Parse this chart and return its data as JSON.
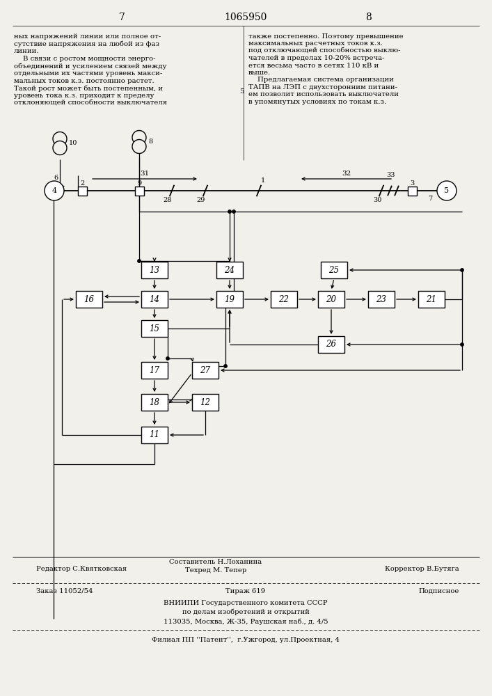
{
  "page_num": "1065950",
  "page_l": "7",
  "page_r": "8",
  "text_left": "ных напряжений линии или полное от-\nсутствие напряжения на любой из фаз\nлинии.\n    В связи с ростом мощности энерго-\nобъединений и усилением связей между\nотдельными их частями уровень макси-\nмальных токов к.з. постоянно растет.\nТакой рост может быть постепенным, и\nуровень тока к.з. приходит к пределу\nотклоняющей способности выключателя",
  "text_right": "также постепенно. Поэтому превышение\nмаксимальных расчетных токов к.з.\nпод отключающей способностью выклю-\nчателей в пределах 10-20% встреча-\nется весьма часто в сетях 110 кВ и\nвыше.\n    Предлагаемая система организации\nТАПВ на ЛЭП с двухсторонним питани-\nем позволит использовать выключатели\nв упомянутых условиях по токам к.з.",
  "line5": "5",
  "editor": "Редактор С.Квятковская",
  "author1": "Составитель Н.Лоханина",
  "author2": "Техред М. Тепер",
  "corrector": "Корректор В.Бутяга",
  "order": "Заказ 11052/54",
  "circulation": "Тираж 619",
  "subscription": "Подписное",
  "inst1": "ВНИИПИ Государственного комитета СССР",
  "inst2": "по делам изобретений и открытий",
  "inst3": "113035, Москва, Ж-35, Раушская наб., д. 4/5",
  "branch": "Филиал ПП ''Патент'',  г.Ужгород, ул.Проектная, 4",
  "bg": "#f2f0eb"
}
